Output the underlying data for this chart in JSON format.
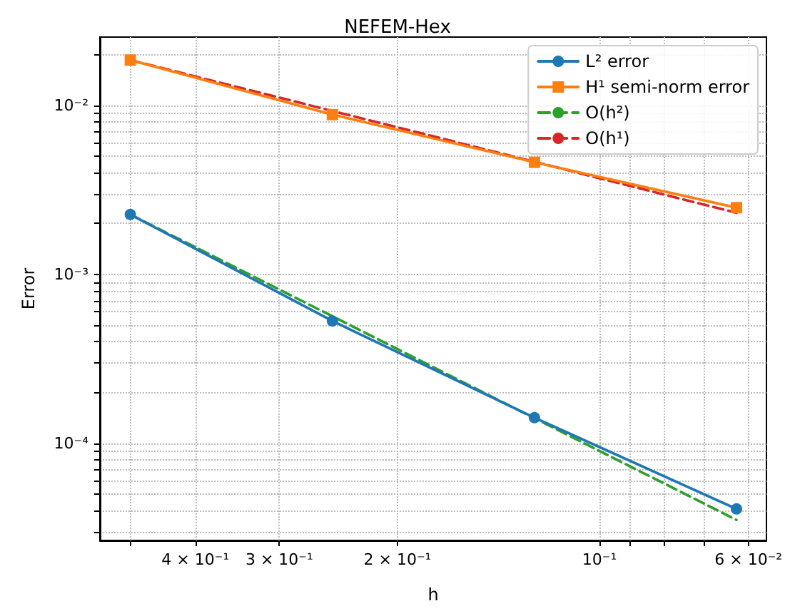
{
  "chart_data": {
    "type": "line",
    "title": "NEFEM-Hex",
    "xlabel": "h",
    "ylabel": "Error",
    "log": "xy",
    "grid": true,
    "legend": "top right",
    "xlim": [
      0.555,
      0.0564
    ],
    "ylim": [
      2.67e-05,
      0.0253
    ],
    "xticks": [
      {
        "value": 0.5,
        "label": null
      },
      {
        "value": 0.4,
        "label": "4 × 10⁻¹"
      },
      {
        "value": 0.3,
        "label": "3 × 10⁻¹"
      },
      {
        "value": 0.2,
        "label": "2 × 10⁻¹"
      },
      {
        "value": 0.1,
        "label": "10⁻¹"
      },
      {
        "value": 0.09,
        "label": null
      },
      {
        "value": 0.08,
        "label": null
      },
      {
        "value": 0.07,
        "label": null
      },
      {
        "value": 0.06,
        "label": "6 × 10⁻²"
      }
    ],
    "yticks": [
      {
        "value": 3e-05,
        "label": null
      },
      {
        "value": 4e-05,
        "label": null
      },
      {
        "value": 5e-05,
        "label": null
      },
      {
        "value": 6e-05,
        "label": null
      },
      {
        "value": 7e-05,
        "label": null
      },
      {
        "value": 8e-05,
        "label": null
      },
      {
        "value": 9e-05,
        "label": null
      },
      {
        "value": 0.0001,
        "label": "10⁻⁴"
      },
      {
        "value": 0.0002,
        "label": null
      },
      {
        "value": 0.0003,
        "label": null
      },
      {
        "value": 0.0004,
        "label": null
      },
      {
        "value": 0.0005,
        "label": null
      },
      {
        "value": 0.0006,
        "label": null
      },
      {
        "value": 0.0007,
        "label": null
      },
      {
        "value": 0.0008,
        "label": null
      },
      {
        "value": 0.0009,
        "label": null
      },
      {
        "value": 0.001,
        "label": "10⁻³"
      },
      {
        "value": 0.002,
        "label": null
      },
      {
        "value": 0.003,
        "label": null
      },
      {
        "value": 0.004,
        "label": null
      },
      {
        "value": 0.005,
        "label": null
      },
      {
        "value": 0.006,
        "label": null
      },
      {
        "value": 0.007,
        "label": null
      },
      {
        "value": 0.008,
        "label": null
      },
      {
        "value": 0.009,
        "label": null
      },
      {
        "value": 0.01,
        "label": "10⁻²"
      },
      {
        "value": 0.02,
        "label": null
      }
    ],
    "x": [
      0.5,
      0.25,
      0.125,
      0.0625
    ],
    "series": [
      {
        "name": "L² error",
        "color": "#1f77b4",
        "marker": "circle",
        "line_style": "solid",
        "values": [
          0.00226,
          0.00053,
          0.000142,
          4.1e-05
        ]
      },
      {
        "name": "H¹ semi-norm error",
        "color": "#ff7f0e",
        "marker": "square",
        "line_style": "solid",
        "values": [
          0.0185,
          0.0088,
          0.0046,
          0.00248
        ]
      },
      {
        "name": "O(h²)",
        "color": "#2ca02c",
        "marker": "none",
        "line_style": "dashed",
        "values": [
          0.00226,
          0.000565,
          0.000141,
          3.53e-05
        ]
      },
      {
        "name": "O(h¹)",
        "color": "#d62728",
        "marker": "none",
        "line_style": "dashed",
        "values": [
          0.0185,
          0.00925,
          0.00463,
          0.00231
        ]
      }
    ]
  }
}
